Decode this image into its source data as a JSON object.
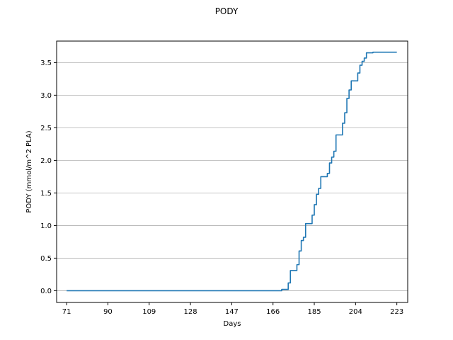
{
  "chart_data": {
    "type": "line",
    "title": "PODY",
    "xlabel": "Days",
    "ylabel": "PODY (mmol/m^2 PLA)",
    "xlim": [
      66.4,
      228
    ],
    "ylim": [
      -0.18,
      3.83
    ],
    "xticks": [
      71,
      90,
      109,
      128,
      147,
      166,
      185,
      204,
      223
    ],
    "yticks": [
      0.0,
      0.5,
      1.0,
      1.5,
      2.0,
      2.5,
      3.0,
      3.5
    ],
    "ytick_labels": [
      "0.0",
      "0.5",
      "1.0",
      "1.5",
      "2.0",
      "2.5",
      "3.0",
      "3.5"
    ],
    "grid": "horizontal",
    "line_color": "#1f77b4",
    "series": [
      {
        "x": [
          71,
          170,
          170,
          173,
          173,
          174,
          174,
          177,
          177,
          178,
          178,
          179,
          179,
          180,
          180,
          181,
          181,
          184,
          184,
          185,
          185,
          186,
          186,
          187,
          187,
          188,
          188,
          191,
          191,
          192,
          192,
          193,
          193,
          194,
          194,
          195,
          195,
          198,
          198,
          199,
          199,
          200,
          200,
          201,
          201,
          202,
          202,
          205,
          205,
          206,
          206,
          207,
          207,
          208,
          208,
          209,
          209,
          212,
          212,
          223
        ],
        "y": [
          0.0,
          0.0,
          0.02,
          0.02,
          0.12,
          0.12,
          0.31,
          0.31,
          0.4,
          0.4,
          0.61,
          0.61,
          0.77,
          0.77,
          0.82,
          0.82,
          1.03,
          1.03,
          1.16,
          1.16,
          1.32,
          1.32,
          1.48,
          1.48,
          1.57,
          1.57,
          1.75,
          1.75,
          1.8,
          1.8,
          1.96,
          1.96,
          2.05,
          2.05,
          2.14,
          2.14,
          2.39,
          2.39,
          2.57,
          2.57,
          2.73,
          2.73,
          2.95,
          2.95,
          3.08,
          3.08,
          3.22,
          3.22,
          3.34,
          3.34,
          3.46,
          3.46,
          3.52,
          3.52,
          3.57,
          3.57,
          3.65,
          3.65,
          3.66,
          3.66
        ]
      }
    ]
  }
}
